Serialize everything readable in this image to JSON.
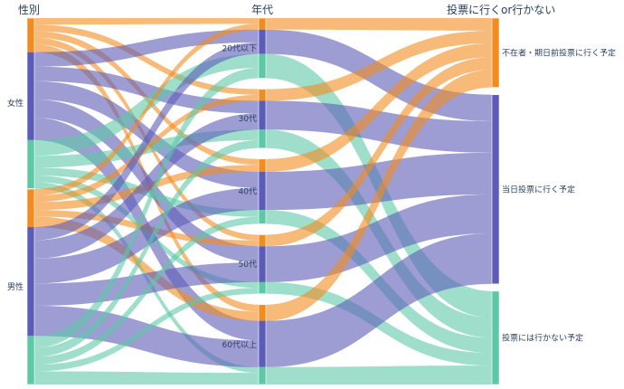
{
  "chart_data": {
    "type": "parallel_categories",
    "dimensions": [
      {
        "label": "性別",
        "categories": [
          "女性",
          "男性"
        ]
      },
      {
        "label": "年代",
        "categories": [
          "20代以下",
          "30代",
          "40代",
          "50代",
          "60代以上"
        ]
      },
      {
        "label": "投票に行くor行かない",
        "categories": [
          "不在者・期日前投票に行く予定",
          "当日投票に行く予定",
          "投票には行かない予定"
        ]
      }
    ],
    "color_categories": [
      "不在者・期日前投票に行く予定",
      "当日投票に行く予定",
      "投票には行かない予定"
    ],
    "colors": {
      "不在者・期日前投票に行く予定": "#f28c1e",
      "当日投票に行く予定": "#5c5cb8",
      "投票には行かない予定": "#5dc8a6"
    },
    "flows": [
      {
        "gender": "女性",
        "age": "20代以下",
        "vote": "不在者・期日前投票に行く予定",
        "count": 5
      },
      {
        "gender": "女性",
        "age": "20代以下",
        "vote": "当日投票に行く予定",
        "count": 11
      },
      {
        "gender": "女性",
        "age": "20代以下",
        "vote": "投票には行かない予定",
        "count": 12
      },
      {
        "gender": "女性",
        "age": "30代",
        "vote": "不在者・期日前投票に行く予定",
        "count": 5
      },
      {
        "gender": "女性",
        "age": "30代",
        "vote": "当日投票に行く予定",
        "count": 11
      },
      {
        "gender": "女性",
        "age": "30代",
        "vote": "投票には行かない予定",
        "count": 9
      },
      {
        "gender": "女性",
        "age": "40代",
        "vote": "不在者・期日前投票に行く予定",
        "count": 5
      },
      {
        "gender": "女性",
        "age": "40代",
        "vote": "当日投票に行く予定",
        "count": 14
      },
      {
        "gender": "女性",
        "age": "40代",
        "vote": "投票には行かない予定",
        "count": 6
      },
      {
        "gender": "女性",
        "age": "50代",
        "vote": "不在者・期日前投票に行く予定",
        "count": 5
      },
      {
        "gender": "女性",
        "age": "50代",
        "vote": "当日投票に行く予定",
        "count": 14
      },
      {
        "gender": "女性",
        "age": "50代",
        "vote": "投票には行かない予定",
        "count": 5
      },
      {
        "gender": "女性",
        "age": "60代以上",
        "vote": "不在者・期日前投票に行く予定",
        "count": 6
      },
      {
        "gender": "女性",
        "age": "60代以上",
        "vote": "当日投票に行く予定",
        "count": 17
      },
      {
        "gender": "女性",
        "age": "60代以上",
        "vote": "投票には行かない予定",
        "count": 5
      },
      {
        "gender": "男性",
        "age": "20代以下",
        "vote": "不在者・期日前投票に行く予定",
        "count": 5
      },
      {
        "gender": "男性",
        "age": "20代以下",
        "vote": "当日投票に行く予定",
        "count": 10
      },
      {
        "gender": "男性",
        "age": "20代以下",
        "vote": "投票には行かない予定",
        "count": 9
      },
      {
        "gender": "男性",
        "age": "30代",
        "vote": "不在者・期日前投票に行く予定",
        "count": 5
      },
      {
        "gender": "男性",
        "age": "30代",
        "vote": "当日投票に行く予定",
        "count": 14
      },
      {
        "gender": "男性",
        "age": "30代",
        "vote": "投票には行かない予定",
        "count": 7
      },
      {
        "gender": "男性",
        "age": "40代",
        "vote": "不在者・期日前投票に行く予定",
        "count": 6
      },
      {
        "gender": "男性",
        "age": "40代",
        "vote": "当日投票に行く予定",
        "count": 19
      },
      {
        "gender": "男性",
        "age": "40代",
        "vote": "投票には行かない予定",
        "count": 6
      },
      {
        "gender": "男性",
        "age": "50代",
        "vote": "不在者・期日前投票に行く予定",
        "count": 5
      },
      {
        "gender": "男性",
        "age": "50代",
        "vote": "当日投票に行く予定",
        "count": 17
      },
      {
        "gender": "男性",
        "age": "50代",
        "vote": "投票には行かない予定",
        "count": 5
      },
      {
        "gender": "男性",
        "age": "60代以上",
        "vote": "不在者・期日前投票に行く予定",
        "count": 8
      },
      {
        "gender": "男性",
        "age": "60代以上",
        "vote": "当日投票に行く予定",
        "count": 23
      },
      {
        "gender": "男性",
        "age": "60代以上",
        "vote": "投票には行かない予定",
        "count": 10
      }
    ]
  }
}
